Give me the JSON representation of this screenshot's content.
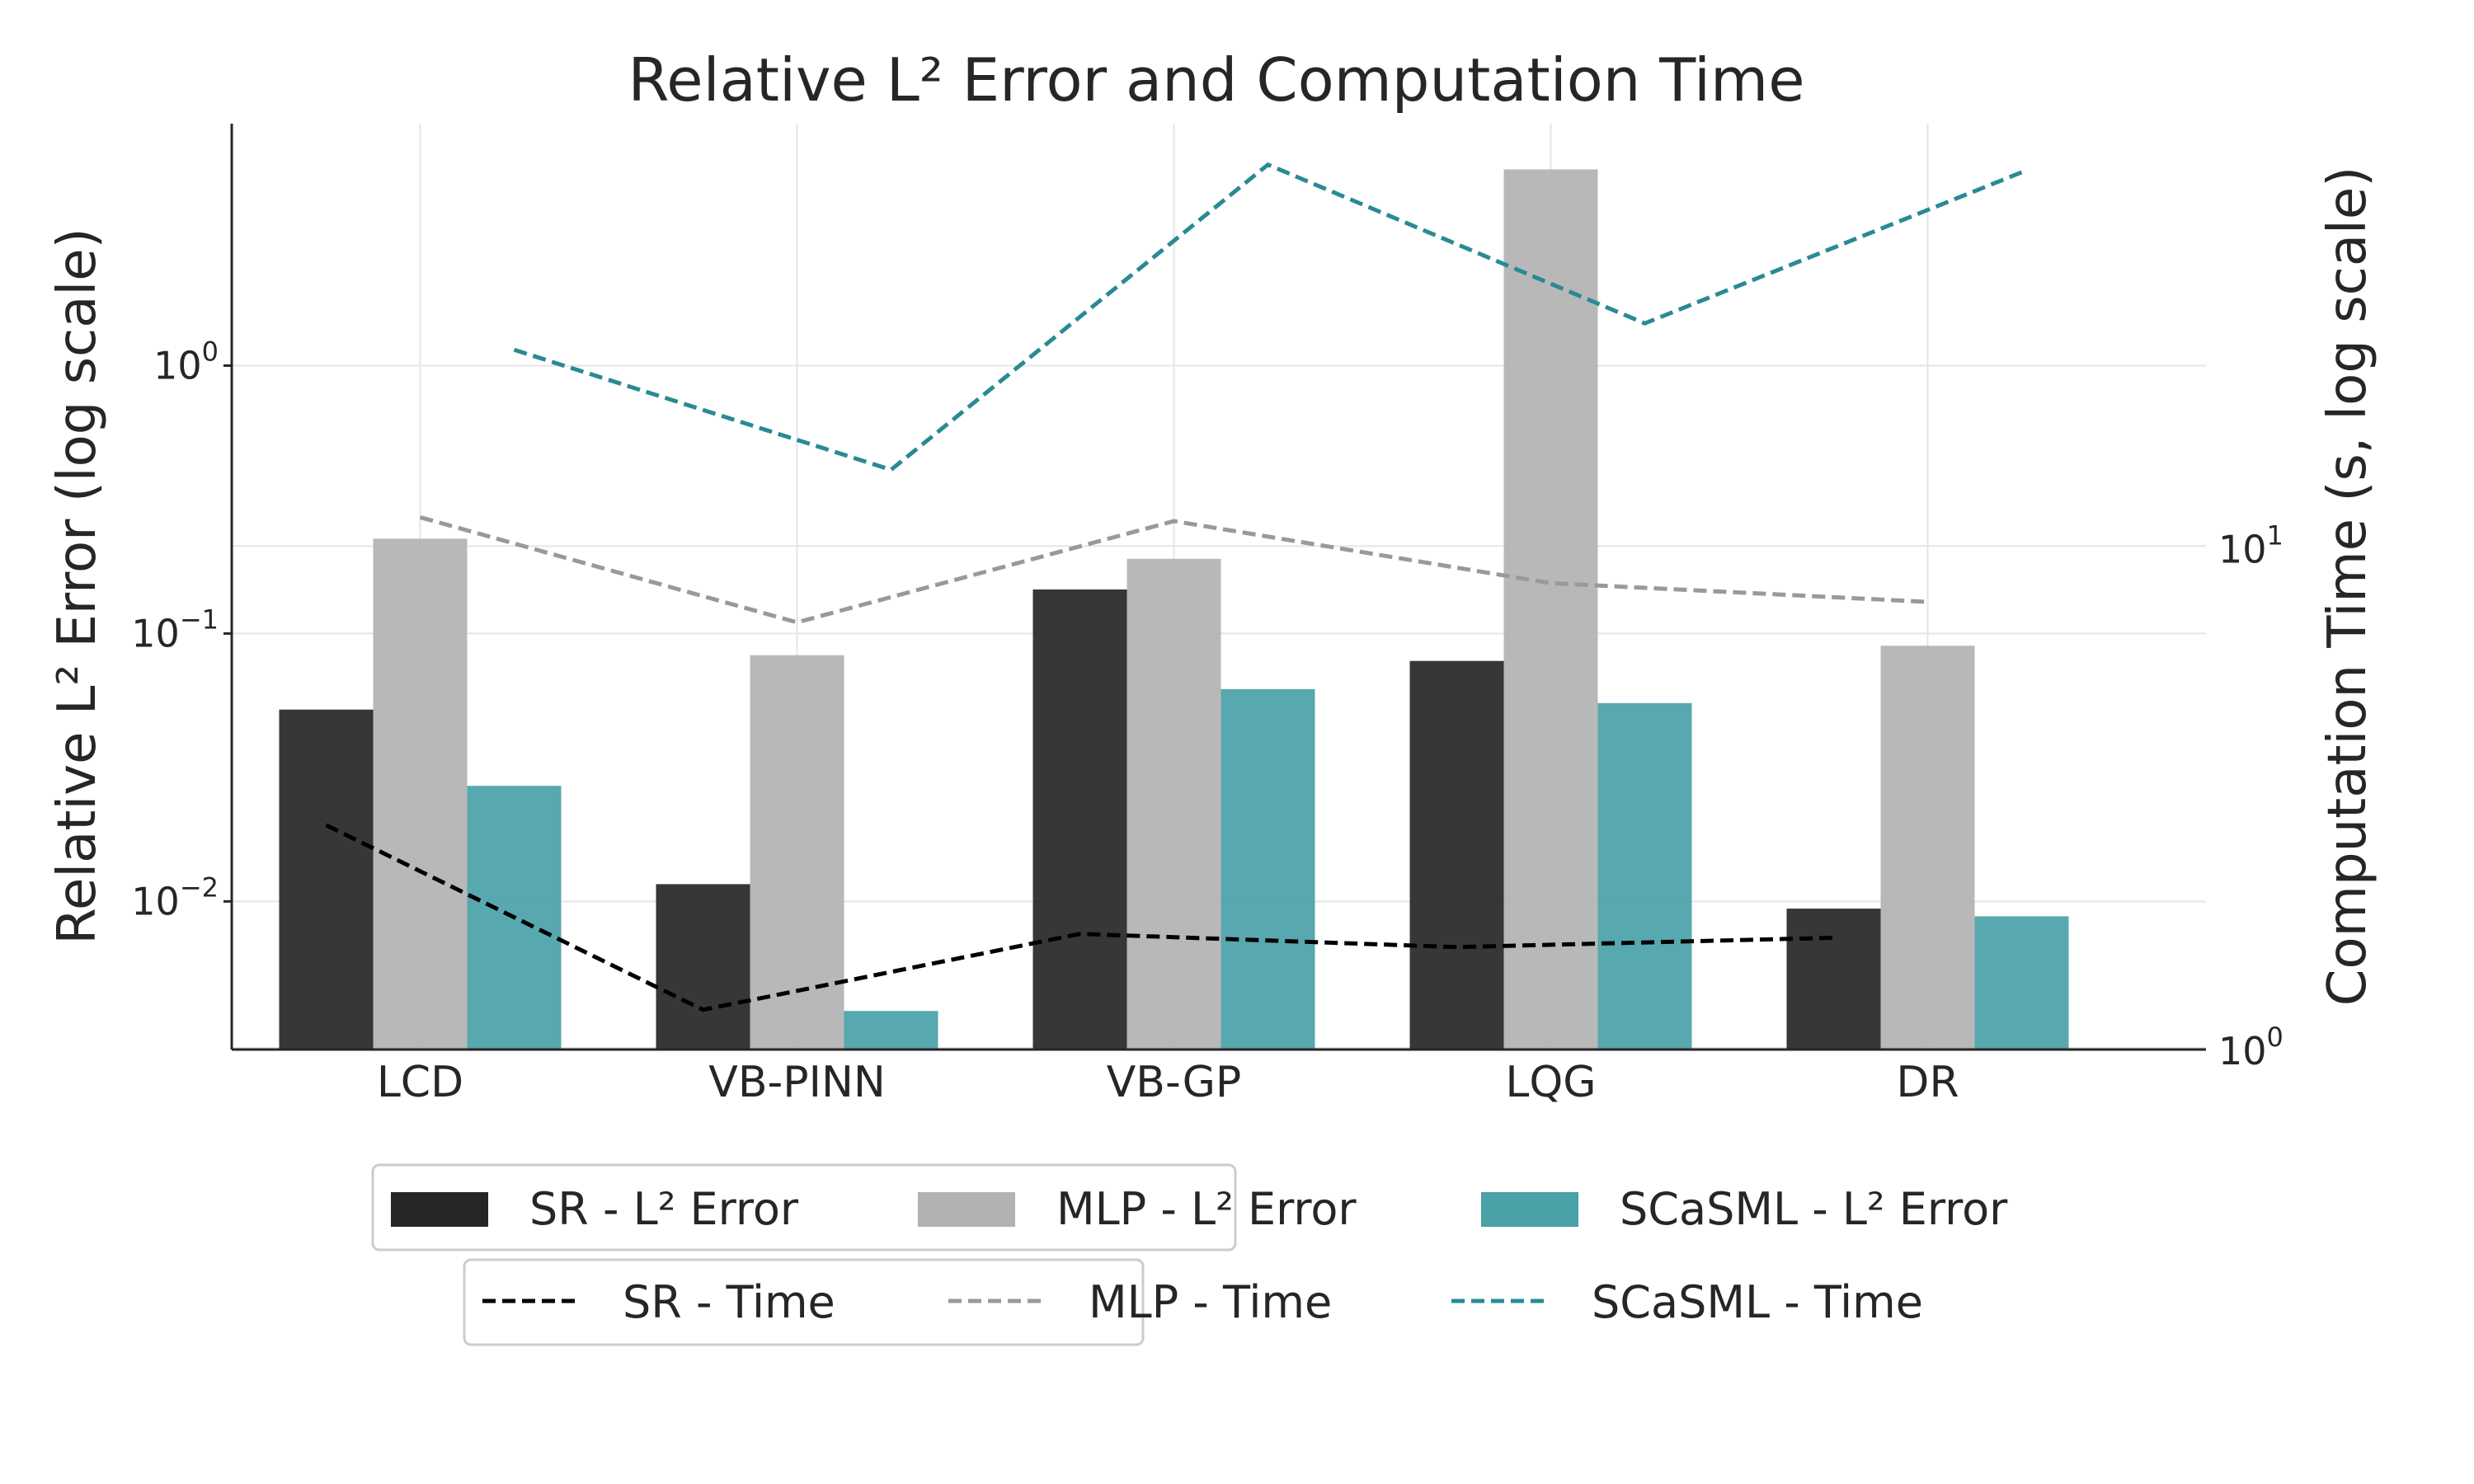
{
  "chart_data": {
    "type": "bar",
    "title": "Relative L² Error and Computation Time",
    "categories": [
      "LCD",
      "VB-PINN",
      "VB-GP",
      "LQG",
      "DR"
    ],
    "ylabel_left": "Relative L² Error (log scale)",
    "ylabel_right": "Computation Time (s, log scale)",
    "y_left_scale": "log",
    "y_right_scale": "log",
    "y_left_ticks": [
      0.01,
      0.1,
      1
    ],
    "y_left_tick_labels": [
      {
        "base": "10",
        "exp": "−2"
      },
      {
        "base": "10",
        "exp": "−1"
      },
      {
        "base": "10",
        "exp": "0"
      }
    ],
    "y_right_ticks": [
      1,
      10
    ],
    "y_right_tick_labels": [
      {
        "base": "10",
        "exp": "0"
      },
      {
        "base": "10",
        "exp": "1"
      }
    ],
    "ylim_left": [
      0.0028,
      8
    ],
    "ylim_right": [
      1,
      70
    ],
    "grid": true,
    "series": [
      {
        "name": "SR - L² Error",
        "kind": "bar",
        "axis": "left",
        "color": "#262626",
        "values": [
          0.052,
          0.0116,
          0.146,
          0.079,
          0.0094
        ]
      },
      {
        "name": "MLP - L² Error",
        "kind": "bar",
        "axis": "left",
        "color": "#b3b2b3",
        "values": [
          0.226,
          0.083,
          0.19,
          5.4,
          0.09
        ]
      },
      {
        "name": "SCaSML - L² Error",
        "kind": "bar",
        "axis": "left",
        "color": "#4aa1a8",
        "values": [
          0.027,
          0.0039,
          0.062,
          0.055,
          0.0088
        ]
      },
      {
        "name": "SR - Time",
        "kind": "line",
        "axis": "right",
        "color": "#000000",
        "values": [
          2.8,
          1.2,
          1.7,
          1.6,
          1.67
        ]
      },
      {
        "name": "MLP - Time",
        "kind": "line",
        "axis": "right",
        "color": "#999999",
        "values": [
          11.5,
          7.1,
          11.3,
          8.5,
          7.8
        ]
      },
      {
        "name": "SCaSML - Time",
        "kind": "line",
        "axis": "right",
        "color": "#2a8a93",
        "values": [
          24.8,
          14.3,
          58,
          28,
          56
        ]
      }
    ],
    "legend_position": "bottom-center"
  }
}
